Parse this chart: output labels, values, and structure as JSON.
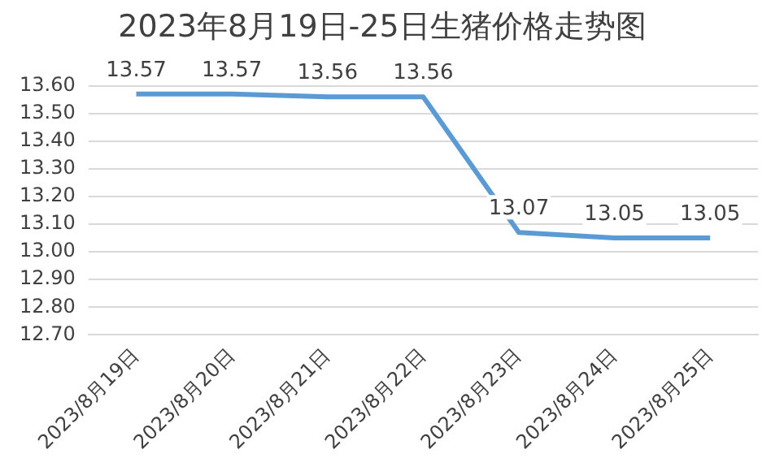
{
  "chart_data": {
    "type": "line",
    "title": "2023年8月19日-25日生猪价格走势图",
    "categories": [
      "2023/8月19日",
      "2023/8月20日",
      "2023/8月21日",
      "2023/8月22日",
      "2023/8月23日",
      "2023/8月24日",
      "2023/8月25日"
    ],
    "series": [
      {
        "color": "#5b9bd5",
        "values": [
          13.57,
          13.57,
          13.56,
          13.56,
          13.07,
          13.05,
          13.05
        ]
      }
    ],
    "ylim": [
      12.7,
      13.6
    ],
    "yticks": [
      {
        "value": 12.7,
        "label": "12.70"
      },
      {
        "value": 12.8,
        "label": "12.80"
      },
      {
        "value": 12.9,
        "label": "12.90"
      },
      {
        "value": 13.0,
        "label": "13.00"
      },
      {
        "value": 13.1,
        "label": "13.10"
      },
      {
        "value": 13.2,
        "label": "13.20"
      },
      {
        "value": 13.3,
        "label": "13.30"
      },
      {
        "value": 13.4,
        "label": "13.40"
      },
      {
        "value": 13.5,
        "label": "13.50"
      },
      {
        "value": 13.6,
        "label": "13.60"
      }
    ],
    "grid": "y",
    "data_labels": true,
    "marker": "none",
    "line_style": "solid"
  }
}
